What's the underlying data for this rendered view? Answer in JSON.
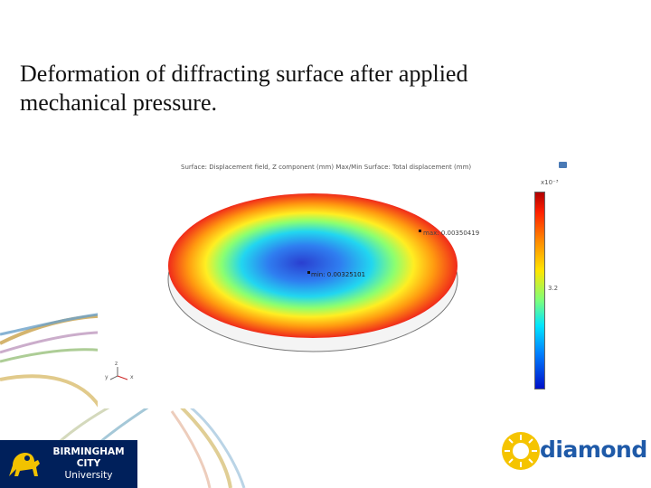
{
  "slide": {
    "title": "Deformation of diffracting surface after applied mechanical pressure."
  },
  "simulation": {
    "caption": "Surface: Displacement field, Z component (mm)  Max/Min Surface: Total displacement (mm)",
    "max_label": "max: 0.00350419",
    "min_label": "min: 0.00325101",
    "colorbar_exponent": "x10⁻³",
    "colorbar_tick": "3.2",
    "axis_labels": {
      "z": "z",
      "y": "y",
      "x": "x"
    }
  },
  "logos": {
    "bcu": {
      "line1": "BIRMINGHAM",
      "line2": "CITY",
      "line3": "University"
    },
    "diamond": {
      "word": "diamond"
    }
  },
  "colors": {
    "bcu_navy": "#00205b",
    "diamond_blue": "#1f5aa8",
    "diamond_yellow": "#f5c400"
  }
}
